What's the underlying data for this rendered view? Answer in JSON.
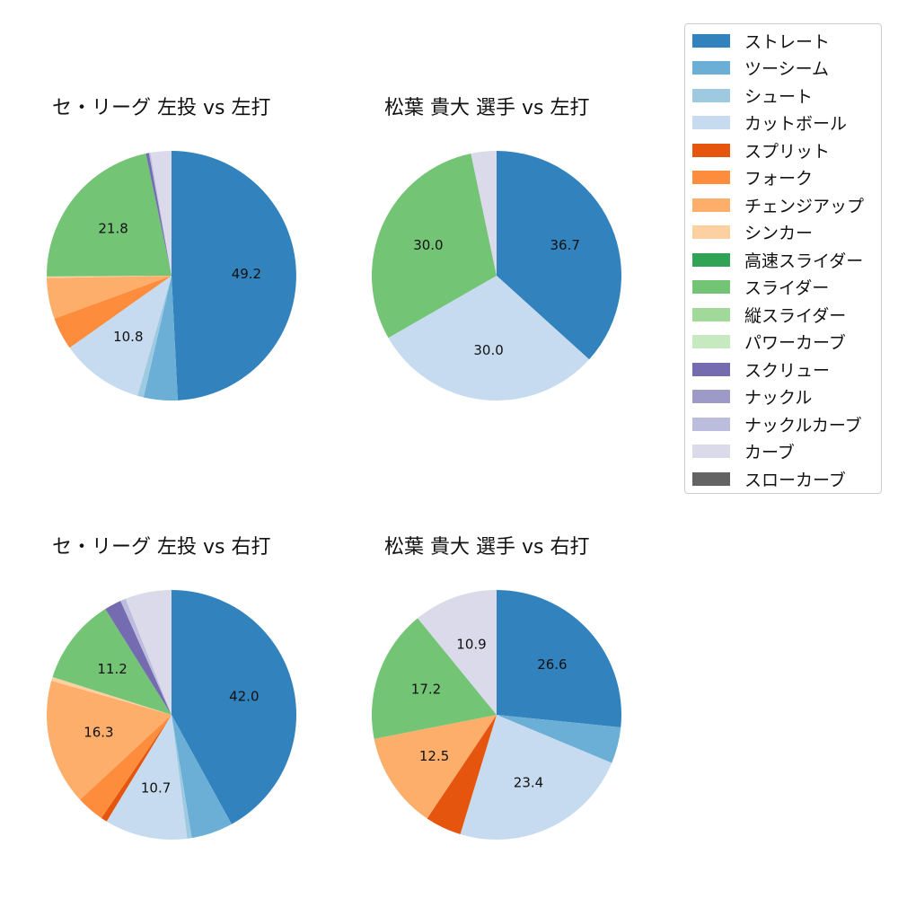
{
  "colors": {
    "ストレート": "#3182bd",
    "ツーシーム": "#6baed6",
    "シュート": "#9ecae1",
    "カットボール": "#c6dbef",
    "スプリット": "#e6550d",
    "フォーク": "#fd8d3c",
    "チェンジアップ": "#fdae6b",
    "シンカー": "#fdd0a2",
    "高速スライダー": "#31a354",
    "スライダー": "#74c476",
    "縦スライダー": "#a1d99b",
    "パワーカーブ": "#c7e9c0",
    "スクリュー": "#756bb1",
    "ナックル": "#9e9ac8",
    "ナックルカーブ": "#bcbddc",
    "カーブ": "#dadaeb",
    "スローカーブ": "#636363"
  },
  "legend": [
    "ストレート",
    "ツーシーム",
    "シュート",
    "カットボール",
    "スプリット",
    "フォーク",
    "チェンジアップ",
    "シンカー",
    "高速スライダー",
    "スライダー",
    "縦スライダー",
    "パワーカーブ",
    "スクリュー",
    "ナックル",
    "ナックルカーブ",
    "カーブ",
    "スローカーブ"
  ],
  "chart_data": [
    {
      "type": "pie",
      "title": "セ・リーグ 左投 vs 左打",
      "slices": [
        {
          "label": "ストレート",
          "value": 49.2,
          "text": "49.2"
        },
        {
          "label": "ツーシーム",
          "value": 4.4
        },
        {
          "label": "シュート",
          "value": 0.8
        },
        {
          "label": "カットボール",
          "value": 10.8,
          "text": "10.8"
        },
        {
          "label": "フォーク",
          "value": 4.2
        },
        {
          "label": "チェンジアップ",
          "value": 5.3
        },
        {
          "label": "シンカー",
          "value": 0.2
        },
        {
          "label": "スライダー",
          "value": 21.8,
          "text": "21.8"
        },
        {
          "label": "スクリュー",
          "value": 0.4
        },
        {
          "label": "ナックルカーブ",
          "value": 0.2
        },
        {
          "label": "カーブ",
          "value": 2.7
        }
      ]
    },
    {
      "type": "pie",
      "title": "松葉 貴大 選手 vs 左打",
      "slices": [
        {
          "label": "ストレート",
          "value": 36.7,
          "text": "36.7"
        },
        {
          "label": "カットボール",
          "value": 30.0,
          "text": "30.0"
        },
        {
          "label": "スライダー",
          "value": 30.0,
          "text": "30.0"
        },
        {
          "label": "カーブ",
          "value": 3.3
        }
      ]
    },
    {
      "type": "pie",
      "title": "セ・リーグ 左投 vs 右打",
      "slices": [
        {
          "label": "ストレート",
          "value": 42.0,
          "text": "42.0"
        },
        {
          "label": "ツーシーム",
          "value": 5.4
        },
        {
          "label": "シュート",
          "value": 0.6
        },
        {
          "label": "カットボール",
          "value": 10.7,
          "text": "10.7"
        },
        {
          "label": "スプリット",
          "value": 0.8
        },
        {
          "label": "フォーク",
          "value": 3.6
        },
        {
          "label": "チェンジアップ",
          "value": 16.3,
          "text": "16.3"
        },
        {
          "label": "シンカー",
          "value": 0.5
        },
        {
          "label": "スライダー",
          "value": 11.2,
          "text": "11.2"
        },
        {
          "label": "スクリュー",
          "value": 2.2
        },
        {
          "label": "ナックルカーブ",
          "value": 0.7
        },
        {
          "label": "カーブ",
          "value": 6.0
        }
      ]
    },
    {
      "type": "pie",
      "title": "松葉 貴大 選手 vs 右打",
      "slices": [
        {
          "label": "ストレート",
          "value": 26.6,
          "text": "26.6"
        },
        {
          "label": "ツーシーム",
          "value": 4.7
        },
        {
          "label": "カットボール",
          "value": 23.4,
          "text": "23.4"
        },
        {
          "label": "スプリット",
          "value": 4.7
        },
        {
          "label": "チェンジアップ",
          "value": 12.5,
          "text": "12.5"
        },
        {
          "label": "スライダー",
          "value": 17.2,
          "text": "17.2"
        },
        {
          "label": "カーブ",
          "value": 10.9,
          "text": "10.9"
        }
      ]
    }
  ]
}
